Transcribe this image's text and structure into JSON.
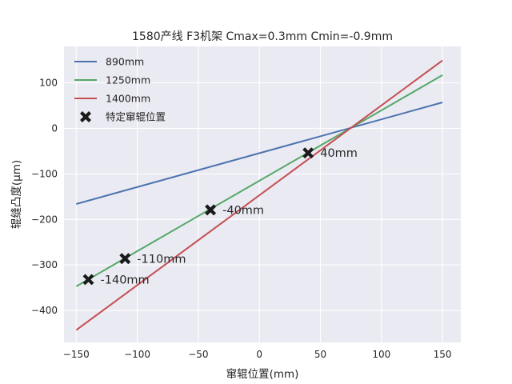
{
  "chart_data": {
    "type": "line",
    "title": "1580产线 F3机架 Cmax=0.3mm Cmin=-0.9mm",
    "xlabel": "窜辊位置(mm)",
    "ylabel": "辊缝凸度(μm)",
    "xlim": [
      -160,
      165
    ],
    "ylim": [
      -470,
      180
    ],
    "xticks": [
      -150,
      -100,
      -50,
      0,
      50,
      100,
      150
    ],
    "xtick_labels": [
      "−150",
      "−100",
      "−50",
      "0",
      "50",
      "100",
      "150"
    ],
    "yticks": [
      -400,
      -300,
      -200,
      -100,
      0,
      100
    ],
    "ytick_labels": [
      "−400",
      "−300",
      "−200",
      "−100",
      "0",
      "100"
    ],
    "grid": true,
    "legend_placement": "upper-left",
    "series": [
      {
        "name": "890mm",
        "color": "#4c72b0",
        "x": [
          -150,
          150
        ],
        "y": [
          -166,
          57
        ]
      },
      {
        "name": "1250mm",
        "color": "#55a868",
        "x": [
          -150,
          150
        ],
        "y": [
          -347,
          117
        ]
      },
      {
        "name": "1400mm",
        "color": "#c44e52",
        "x": [
          -150,
          150
        ],
        "y": [
          -443,
          149
        ]
      }
    ],
    "markers": {
      "name": "特定窜辊位置",
      "color": "#1a1a1a",
      "points": [
        {
          "x": -140,
          "y": -332,
          "label": "-140mm"
        },
        {
          "x": -110,
          "y": -286,
          "label": "-110mm"
        },
        {
          "x": -40,
          "y": -179,
          "label": "-40mm"
        },
        {
          "x": 40,
          "y": -54,
          "label": "40mm"
        }
      ]
    }
  }
}
